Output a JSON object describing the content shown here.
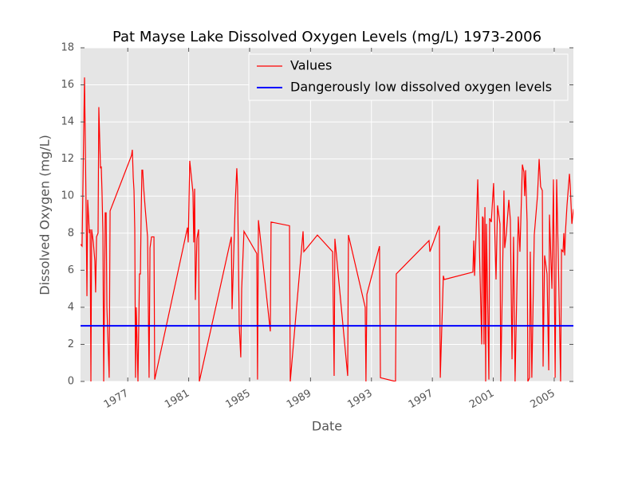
{
  "chart_data": {
    "type": "line",
    "title": "Pat Mayse Lake Dissolved Oxygen Levels (mg/L) 1973-2006",
    "x_label": "Date",
    "y_label": "Dissolved Oxygen (mg/L)",
    "xlim": [
      1973.9,
      2006.26
    ],
    "xticks": [
      1977,
      1981,
      1985,
      1989,
      1993,
      1997,
      2001,
      2005
    ],
    "ylim": [
      0,
      18
    ],
    "yticks": [
      0,
      2,
      4,
      6,
      8,
      10,
      12,
      14,
      16,
      18
    ],
    "grid": true,
    "legend": "upper right",
    "series": [
      {
        "name": "Values",
        "color": "#ff0000",
        "x": [
          1973.9,
          1974.0,
          1974.16,
          1974.27,
          1974.32,
          1974.37,
          1974.48,
          1974.53,
          1974.58,
          1974.63,
          1974.74,
          1974.84,
          1974.89,
          1974.95,
          1975.05,
          1975.1,
          1975.16,
          1975.21,
          1975.26,
          1975.31,
          1975.37,
          1975.42,
          1975.52,
          1975.58,
          1975.63,
          1975.78,
          1975.84,
          1977.25,
          1977.3,
          1977.36,
          1977.41,
          1977.46,
          1977.51,
          1977.56,
          1977.67,
          1977.77,
          1977.83,
          1977.88,
          1977.93,
          1977.98,
          1978.04,
          1978.14,
          1978.3,
          1978.4,
          1978.46,
          1978.56,
          1978.72,
          1978.77,
          1980.92,
          1980.97,
          1981.07,
          1981.28,
          1981.33,
          1981.39,
          1981.44,
          1981.54,
          1981.65,
          1981.7,
          1983.8,
          1983.85,
          1984.06,
          1984.16,
          1984.21,
          1984.32,
          1984.42,
          1984.48,
          1984.63,
          1985.47,
          1985.52,
          1985.58,
          1986.36,
          1986.41,
          1987.62,
          1987.67,
          1988.51,
          1988.56,
          1989.45,
          1990.45,
          1990.55,
          1990.6,
          1991.44,
          1991.49,
          1992.59,
          1992.64,
          1992.7,
          1993.53,
          1993.59,
          1994.58,
          1994.63,
          1996.78,
          1996.84,
          1997.46,
          1997.52,
          1997.72,
          1997.78,
          1999.66,
          1999.72,
          1999.77,
          1999.87,
          1999.98,
          2000.08,
          2000.24,
          2000.29,
          2000.34,
          2000.39,
          2000.45,
          2000.5,
          2000.55,
          2000.71,
          2000.76,
          2000.87,
          2001.02,
          2001.07,
          2001.18,
          2001.28,
          2001.44,
          2001.49,
          2001.7,
          2001.75,
          2001.86,
          2002.02,
          2002.12,
          2002.23,
          2002.33,
          2002.43,
          2002.64,
          2002.75,
          2002.91,
          2003.01,
          2003.06,
          2003.12,
          2003.22,
          2003.27,
          2003.38,
          2003.43,
          2003.53,
          2003.69,
          2003.9,
          2004.01,
          2004.11,
          2004.22,
          2004.27,
          2004.37,
          2004.53,
          2004.64,
          2004.69,
          2004.85,
          2004.95,
          2005.06,
          2005.16,
          2005.27,
          2005.42,
          2005.48,
          2005.58,
          2005.63,
          2005.69,
          2005.74,
          2005.84,
          2006.0,
          2006.05,
          2006.16,
          2006.26
        ],
        "values": [
          7.4,
          7.3,
          16.4,
          9,
          4.6,
          9.8,
          8,
          8.2,
          0,
          8.2,
          7.5,
          6.5,
          4.8,
          7.8,
          8,
          14.8,
          13,
          11.5,
          11.6,
          10.2,
          8,
          0,
          9.1,
          9.1,
          4,
          0.2,
          9.2,
          12.2,
          12.5,
          11,
          10.3,
          8.2,
          0.2,
          4,
          0,
          5.8,
          5.8,
          9,
          11.4,
          11.4,
          10.5,
          9.4,
          7.8,
          0.2,
          7.2,
          7.8,
          7.8,
          0.1,
          8.3,
          7.5,
          11.9,
          10.2,
          7.5,
          10.4,
          4.4,
          7.7,
          8.2,
          0,
          7.8,
          3.9,
          9.7,
          11.5,
          10.5,
          3,
          1.3,
          5,
          8.1,
          6.9,
          0.1,
          8.7,
          2.7,
          8.6,
          8.4,
          0,
          8.1,
          7,
          7.9,
          7.0,
          0.3,
          7.7,
          0.3,
          7.9,
          4,
          0,
          4.7,
          7.3,
          0.2,
          0,
          5.8,
          7.6,
          7.0,
          8.4,
          0.2,
          5.7,
          5.5,
          5.9,
          7.6,
          5.7,
          8,
          10.9,
          7.5,
          2,
          8.9,
          8.8,
          2,
          9.4,
          0,
          8.5,
          0.1,
          8.8,
          8.6,
          10.7,
          9,
          5.5,
          9.5,
          8.5,
          0,
          10.3,
          7.2,
          8,
          9.8,
          8.7,
          1.2,
          7.8,
          0,
          8.9,
          7,
          11.7,
          11.3,
          10,
          11.4,
          8.6,
          0,
          0.2,
          7,
          0.2,
          7.9,
          10,
          12,
          10.5,
          10.3,
          0.8,
          6.8,
          5.8,
          0.6,
          9,
          5,
          10.9,
          0.2,
          10.9,
          6.6,
          0,
          7.1,
          7,
          8,
          6.8,
          8.1,
          9.5,
          11.2,
          10.6,
          8.5,
          9.3
        ]
      },
      {
        "name": "Dangerously low dissolved oxygen levels",
        "color": "#0000ff",
        "x": [
          1973.9,
          2006.26
        ],
        "values": [
          3,
          3
        ]
      }
    ]
  }
}
